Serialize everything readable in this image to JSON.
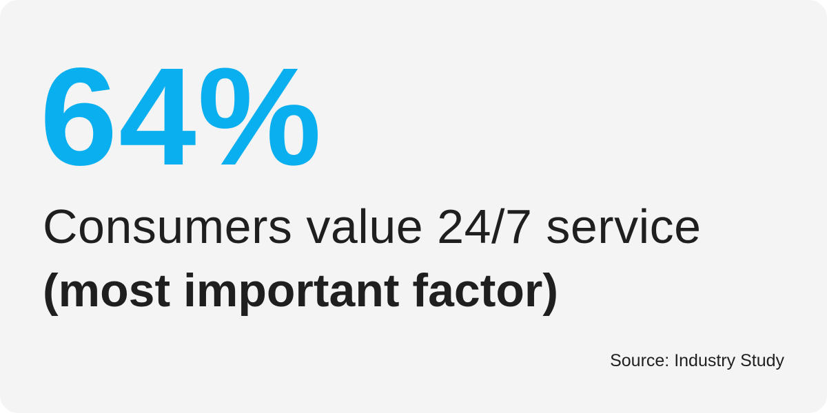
{
  "stat": {
    "value": "64%",
    "color": "#0aaff0"
  },
  "description": "Consumers value 24/7 service",
  "emphasis": "(most important factor)",
  "source": "Source: Industry Study"
}
